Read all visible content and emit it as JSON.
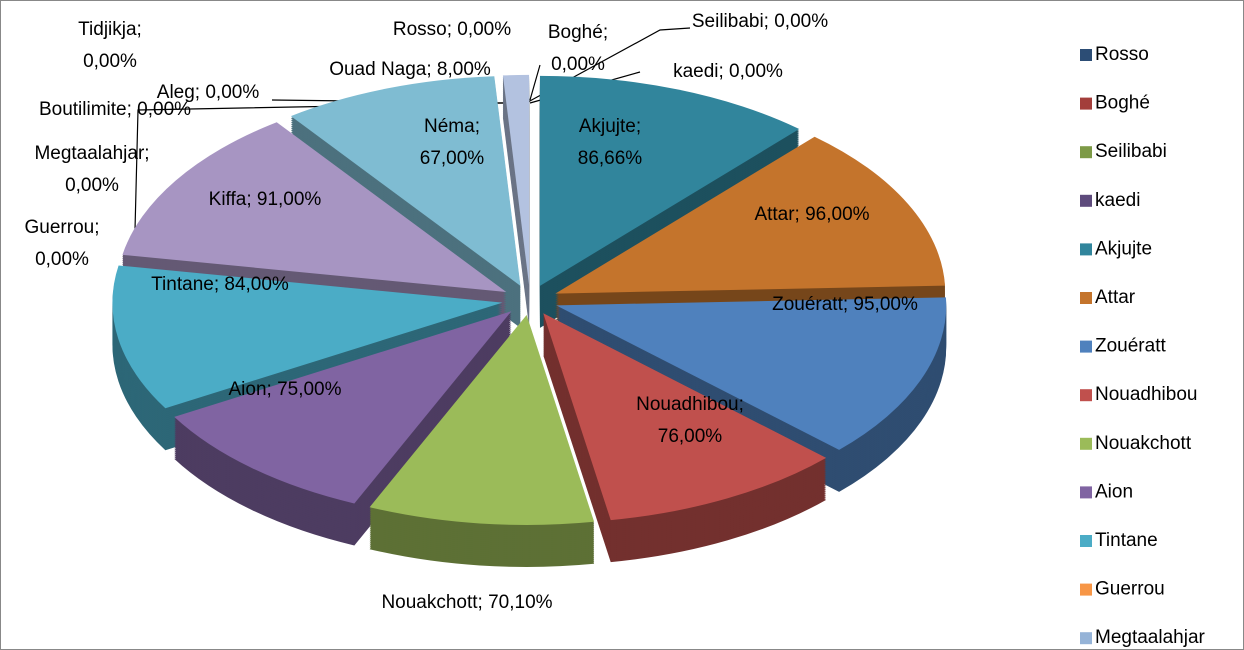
{
  "chart_data": {
    "type": "pie",
    "categories": [
      "Rosso",
      "Boghé",
      "Seilibabi",
      "kaedi",
      "Akjujte",
      "Attar",
      "Zouératt",
      "Nouadhibou",
      "Nouakchott",
      "Aion",
      "Tintane",
      "Guerrou",
      "Megtaalahjar",
      "Boutilimite",
      "Kiffa",
      "Tidjikja",
      "Aleg",
      "Néma",
      "Ouad Naga"
    ],
    "values": [
      0,
      0,
      0,
      0,
      86.66,
      96,
      95,
      76,
      70.1,
      75,
      84,
      0,
      0,
      0,
      91,
      0,
      0,
      67,
      8
    ],
    "value_labels": [
      "Rosso; 0,00%",
      "Boghé; 0,00%",
      "Seilibabi; 0,00%",
      "kaedi; 0,00%",
      "Akjujte; 86,66%",
      "Attar; 96,00%",
      "Zouératt; 95,00%",
      "Nouadhibou; 76,00%",
      "Nouakchott; 70,10%",
      "Aion; 75,00%",
      "Tintane; 84,00%",
      "Guerrou; 0,00%",
      "Megtaalahjar; 0,00%",
      "Boutilimite; 0,00%",
      "Kiffa; 91,00%",
      "Tidjikja; 0,00%",
      "Aleg; 0,00%",
      "Néma; 67,00%",
      "Ouad Naga; 8,00%"
    ],
    "colors": [
      "#2C4D75",
      "#A33E3B",
      "#7D9A47",
      "#5E4B7C",
      "#31859C",
      "#C4742C",
      "#4F81BD",
      "#C0504D",
      "#9BBB59",
      "#8064A2",
      "#4BACC6",
      "#F79646",
      "#95B3D7",
      "#D99694",
      "#A795C2",
      "#C3D69B",
      "#93CDDD",
      "#7FBCD2",
      "#B3C2E0"
    ],
    "legend": "right"
  }
}
